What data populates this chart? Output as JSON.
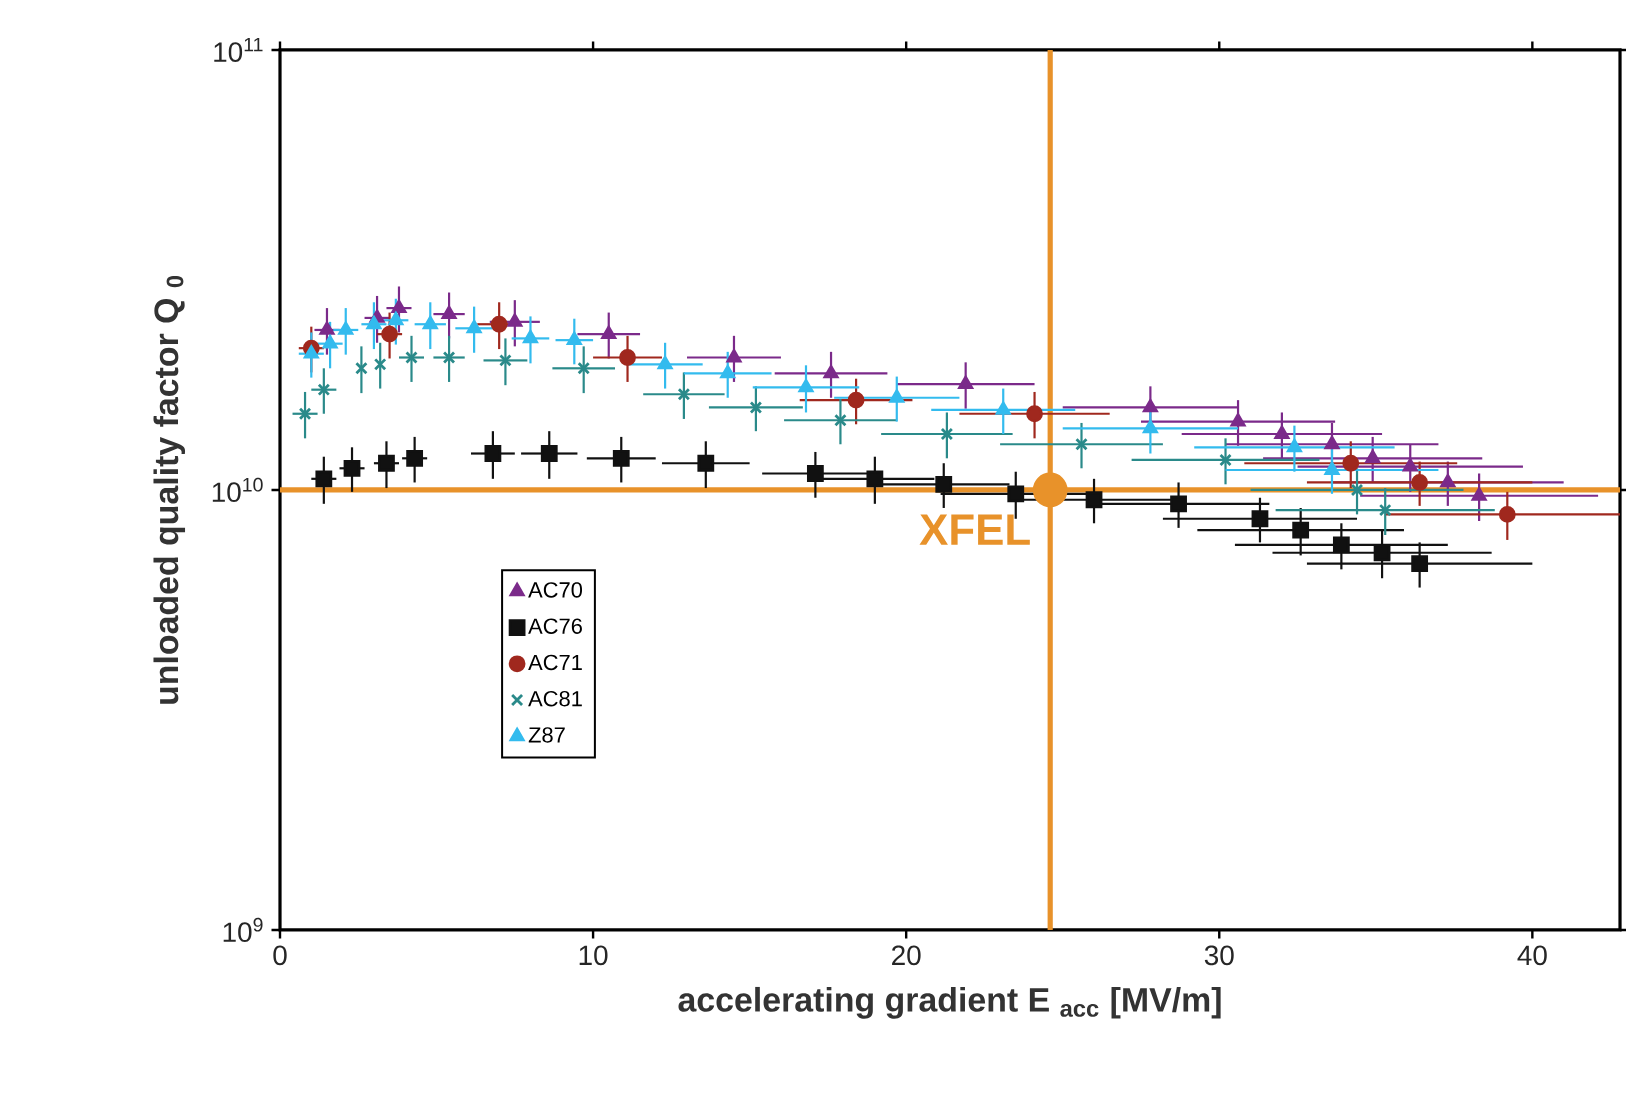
{
  "chart_data": {
    "type": "scatter",
    "xlabel": "accelerating gradient E $_{acc}$ [MV/m]",
    "ylabel": "unloaded quality factor Q $_{0}$",
    "log": "y",
    "xlim": [
      0,
      42.8
    ],
    "xticks": [
      0,
      10,
      20,
      30,
      40
    ],
    "ylim": [
      1000000000.0,
      100000000000.0
    ],
    "yticks": [
      {
        "value": 1000000000.0,
        "label": "10$^{9}$"
      },
      {
        "value": 10000000000.0,
        "label": "10$^{10}$"
      },
      {
        "value": 100000000000.0,
        "label": "10$^{11}$"
      }
    ],
    "grid": false,
    "legend": "left",
    "series": [
      {
        "name": "AC70",
        "color": "#7b2a8a",
        "marker": "triangle",
        "x": [
          1.5,
          3.1,
          3.8,
          5.4,
          7.5,
          10.5,
          14.5,
          17.6,
          21.9,
          27.8,
          30.6,
          32.0,
          33.6,
          34.9,
          36.1,
          37.3,
          38.3
        ],
        "values": [
          23100000000.0,
          24600000000.0,
          25900000000.0,
          25100000000.0,
          24100000000.0,
          22600000000.0,
          20000000000.0,
          18400000000.0,
          17400000000.0,
          15400000000.0,
          14300000000.0,
          13400000000.0,
          12700000000.0,
          11800000000.0,
          11300000000.0,
          10400000000.0,
          9700000000.0
        ],
        "xerrors": [
          0.4,
          0.4,
          0.4,
          0.5,
          0.8,
          1.0,
          1.5,
          1.8,
          2.2,
          2.8,
          3.1,
          3.2,
          3.4,
          3.5,
          3.6,
          3.7,
          3.8
        ],
        "errors": [
          2800000000.0,
          3000000000.0,
          3100000000.0,
          3000000000.0,
          2900000000.0,
          2700000000.0,
          2400000000.0,
          2200000000.0,
          2100000000.0,
          1800000000.0,
          1700000000.0,
          1600000000.0,
          1500000000.0,
          1400000000.0,
          1400000000.0,
          1200000000.0,
          1200000000.0
        ]
      },
      {
        "name": "AC76",
        "color": "#111111",
        "marker": "square",
        "x": [
          1.4,
          2.3,
          3.4,
          4.3,
          6.8,
          8.6,
          10.9,
          13.6,
          17.1,
          19.0,
          21.2,
          23.5,
          26.0,
          28.7,
          31.3,
          32.6,
          33.9,
          35.2,
          36.4
        ],
        "values": [
          10600000000.0,
          11200000000.0,
          11500000000.0,
          11800000000.0,
          12100000000.0,
          12100000000.0,
          11800000000.0,
          11500000000.0,
          10900000000.0,
          10600000000.0,
          10300000000.0,
          9800000000.0,
          9500000000.0,
          9300000000.0,
          8600000000.0,
          8100000000.0,
          7500000000.0,
          7200000000.0,
          6800000000.0
        ],
        "xerrors": [
          0.4,
          0.4,
          0.4,
          0.4,
          0.7,
          0.9,
          1.1,
          1.4,
          1.7,
          1.9,
          2.1,
          2.4,
          2.6,
          2.9,
          3.1,
          3.3,
          3.4,
          3.5,
          3.6
        ],
        "errors": [
          1300000000.0,
          1300000000.0,
          1400000000.0,
          1400000000.0,
          1500000000.0,
          1500000000.0,
          1400000000.0,
          1400000000.0,
          1300000000.0,
          1300000000.0,
          1200000000.0,
          1200000000.0,
          1100000000.0,
          1100000000.0,
          1000000000.0,
          1000000000.0,
          900000000.0,
          900000000.0,
          800000000.0
        ]
      },
      {
        "name": "AC71",
        "color": "#a0281e",
        "marker": "circle",
        "x": [
          1.0,
          3.5,
          7.0,
          11.1,
          18.4,
          24.1,
          34.2,
          36.4,
          39.2
        ],
        "values": [
          21000000000.0,
          22600000000.0,
          23800000000.0,
          20000000000.0,
          16000000000.0,
          14900000000.0,
          11500000000.0,
          10400000000.0,
          8800000000.0
        ],
        "xerrors": [
          0.4,
          0.4,
          0.7,
          1.1,
          1.8,
          2.4,
          3.4,
          3.6,
          3.9
        ],
        "errors": [
          2500000000.0,
          2700000000.0,
          2900000000.0,
          2400000000.0,
          1900000000.0,
          1800000000.0,
          1400000000.0,
          1200000000.0,
          1100000000.0
        ]
      },
      {
        "name": "AC81",
        "color": "#2a8a8a",
        "marker": "cross",
        "x": [
          0.8,
          1.4,
          2.6,
          3.2,
          4.2,
          5.4,
          7.2,
          9.7,
          12.9,
          15.2,
          17.9,
          21.3,
          25.6,
          30.2,
          34.4,
          35.3
        ],
        "values": [
          14900000000.0,
          16900000000.0,
          18900000000.0,
          19300000000.0,
          20000000000.0,
          20000000000.0,
          19700000000.0,
          18900000000.0,
          16500000000.0,
          15400000000.0,
          14400000000.0,
          13400000000.0,
          12700000000.0,
          11700000000.0,
          10000000000.0,
          9000000000.0
        ],
        "xerrors": [
          0.4,
          0.4,
          null,
          null,
          0.4,
          0.5,
          0.7,
          1.0,
          1.3,
          1.5,
          1.8,
          2.1,
          2.6,
          3.0,
          3.4,
          3.5
        ],
        "errors": [
          1800000000.0,
          2000000000.0,
          2300000000.0,
          2300000000.0,
          2400000000.0,
          2400000000.0,
          2400000000.0,
          2300000000.0,
          2000000000.0,
          1800000000.0,
          1700000000.0,
          1600000000.0,
          1500000000.0,
          1400000000.0,
          1200000000.0,
          1100000000.0
        ]
      },
      {
        "name": "Z87",
        "color": "#33bbee",
        "marker": "triangle",
        "x": [
          1.0,
          1.6,
          2.1,
          3.0,
          3.7,
          4.8,
          6.2,
          8.0,
          9.4,
          12.3,
          14.3,
          16.8,
          19.7,
          23.1,
          27.8,
          32.4,
          33.6
        ],
        "values": [
          20400000000.0,
          21500000000.0,
          23100000000.0,
          23800000000.0,
          24300000000.0,
          23800000000.0,
          23300000000.0,
          22100000000.0,
          21900000000.0,
          19300000000.0,
          18400000000.0,
          17100000000.0,
          16200000000.0,
          15200000000.0,
          13800000000.0,
          12500000000.0,
          11100000000.0
        ],
        "xerrors": [
          0.4,
          0.4,
          0.4,
          0.4,
          0.4,
          0.5,
          0.6,
          0.6,
          0.6,
          1.2,
          1.4,
          1.7,
          2.0,
          2.3,
          2.8,
          3.2,
          3.4
        ],
        "errors": [
          2400000000.0,
          2600000000.0,
          2800000000.0,
          2900000000.0,
          2900000000.0,
          2900000000.0,
          2800000000.0,
          2700000000.0,
          2600000000.0,
          2300000000.0,
          2200000000.0,
          2100000000.0,
          1900000000.0,
          1800000000.0,
          1700000000.0,
          1500000000.0,
          1300000000.0
        ]
      },
      {
        "color": "#e8922a",
        "marker": "circle",
        "x": [
          24.6
        ],
        "values": [
          10000000000.0
        ]
      }
    ],
    "ref_lines": [
      {
        "axis": "x",
        "value": 24.6,
        "label": "XFEL",
        "color": "#e8922a"
      },
      {
        "axis": "y",
        "value": 10000000000.0,
        "color": "#e8922a"
      }
    ]
  }
}
